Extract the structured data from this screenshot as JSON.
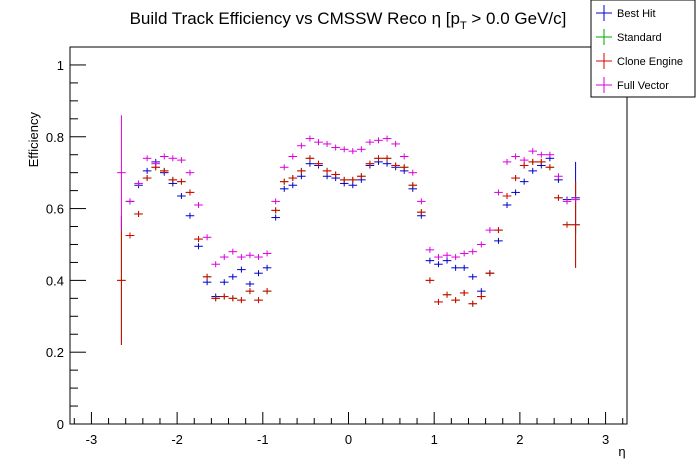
{
  "chart_data": {
    "type": "scatter",
    "title": "Build Track Efficiency vs CMSSW Reco η [p",
    "title_sub": "T",
    "title_suffix": " > 0.0 GeV/c]",
    "xlabel": "η",
    "ylabel": "Efficiency",
    "xlim": [
      -3.25,
      3.25
    ],
    "ylim": [
      0,
      1.05
    ],
    "x_ticks": [
      "-3",
      "-2",
      "-1",
      "0",
      "1",
      "2",
      "3"
    ],
    "y_ticks": [
      "0",
      "0.2",
      "0.4",
      "0.6",
      "0.8",
      "1"
    ],
    "grid": false,
    "legend_position": "top-right",
    "bin_half_width": 0.05,
    "x": [
      -2.65,
      -2.55,
      -2.45,
      -2.35,
      -2.25,
      -2.15,
      -2.05,
      -1.95,
      -1.85,
      -1.75,
      -1.65,
      -1.55,
      -1.45,
      -1.35,
      -1.25,
      -1.15,
      -1.05,
      -0.95,
      -0.85,
      -0.75,
      -0.65,
      -0.55,
      -0.45,
      -0.35,
      -0.25,
      -0.15,
      -0.05,
      0.05,
      0.15,
      0.25,
      0.35,
      0.45,
      0.55,
      0.65,
      0.75,
      0.85,
      0.95,
      1.05,
      1.15,
      1.25,
      1.35,
      1.45,
      1.55,
      1.65,
      1.75,
      1.85,
      1.95,
      2.05,
      2.15,
      2.25,
      2.35,
      2.45,
      2.55,
      2.65
    ],
    "series": [
      {
        "name": "Best Hit",
        "color": "#0000cc",
        "values": [
          null,
          0.62,
          0.665,
          0.705,
          0.73,
          0.7,
          0.67,
          0.635,
          0.58,
          0.495,
          0.395,
          0.355,
          0.395,
          0.41,
          0.43,
          0.39,
          0.42,
          0.435,
          0.575,
          0.655,
          0.665,
          0.69,
          0.725,
          0.72,
          0.69,
          0.685,
          0.67,
          0.665,
          0.68,
          0.72,
          0.73,
          0.725,
          0.715,
          0.705,
          0.655,
          0.58,
          0.455,
          0.445,
          0.455,
          0.435,
          0.435,
          0.41,
          0.37,
          0.42,
          0.51,
          0.61,
          0.645,
          0.675,
          0.705,
          0.72,
          0.74,
          0.68,
          0.625,
          0.63
        ],
        "error": [
          0,
          0,
          0,
          0,
          0,
          0,
          0,
          0,
          0,
          0,
          0,
          0,
          0,
          0,
          0,
          0,
          0,
          0,
          0,
          0,
          0,
          0,
          0,
          0,
          0,
          0,
          0,
          0,
          0,
          0,
          0,
          0,
          0,
          0,
          0,
          0,
          0,
          0,
          0,
          0,
          0,
          0,
          0,
          0,
          0,
          0,
          0,
          0,
          0,
          0,
          0,
          0,
          0,
          0.1
        ]
      },
      {
        "name": "Standard",
        "color": "#00aa00",
        "values": [
          0.4,
          0.525,
          0.585,
          0.685,
          0.715,
          0.705,
          0.68,
          0.675,
          0.645,
          0.515,
          0.41,
          0.35,
          0.355,
          0.35,
          0.345,
          0.37,
          0.345,
          0.37,
          0.595,
          0.675,
          0.685,
          0.705,
          0.74,
          0.725,
          0.705,
          0.695,
          0.68,
          0.68,
          0.69,
          0.725,
          0.74,
          0.74,
          0.72,
          0.715,
          0.665,
          0.59,
          0.4,
          0.34,
          0.36,
          0.345,
          0.365,
          0.335,
          0.355,
          0.42,
          0.54,
          0.635,
          0.685,
          0.72,
          0.73,
          0.73,
          0.715,
          0.63,
          0.555,
          0.555
        ],
        "error": [
          0.18,
          0,
          0,
          0,
          0,
          0,
          0,
          0,
          0,
          0,
          0,
          0,
          0,
          0,
          0,
          0,
          0,
          0,
          0,
          0,
          0,
          0,
          0,
          0,
          0,
          0,
          0,
          0,
          0,
          0,
          0,
          0,
          0,
          0,
          0,
          0,
          0,
          0,
          0,
          0,
          0,
          0,
          0,
          0,
          0,
          0,
          0,
          0,
          0,
          0,
          0,
          0,
          0,
          0.12
        ]
      },
      {
        "name": "Clone Engine",
        "color": "#dd0000",
        "values": [
          0.4,
          0.525,
          0.585,
          0.685,
          0.715,
          0.705,
          0.68,
          0.675,
          0.645,
          0.515,
          0.41,
          0.35,
          0.355,
          0.35,
          0.345,
          0.37,
          0.345,
          0.37,
          0.595,
          0.675,
          0.685,
          0.705,
          0.74,
          0.725,
          0.705,
          0.695,
          0.68,
          0.68,
          0.69,
          0.725,
          0.74,
          0.74,
          0.72,
          0.715,
          0.665,
          0.59,
          0.4,
          0.34,
          0.36,
          0.345,
          0.365,
          0.335,
          0.355,
          0.42,
          0.54,
          0.635,
          0.685,
          0.72,
          0.73,
          0.73,
          0.715,
          0.63,
          0.555,
          0.555
        ],
        "error": [
          0.18,
          0,
          0,
          0,
          0,
          0,
          0,
          0,
          0,
          0,
          0,
          0,
          0,
          0,
          0,
          0,
          0,
          0,
          0,
          0,
          0,
          0,
          0,
          0,
          0,
          0,
          0,
          0,
          0,
          0,
          0,
          0,
          0,
          0,
          0,
          0,
          0,
          0,
          0,
          0,
          0,
          0,
          0,
          0,
          0,
          0,
          0,
          0,
          0,
          0,
          0,
          0,
          0,
          0.12
        ]
      },
      {
        "name": "Full Vector",
        "color": "#dd00dd",
        "values": [
          0.7,
          0.62,
          0.67,
          0.74,
          0.725,
          0.745,
          0.74,
          0.735,
          0.7,
          0.61,
          0.52,
          0.445,
          0.465,
          0.48,
          0.465,
          0.47,
          0.465,
          0.475,
          0.62,
          0.715,
          0.745,
          0.775,
          0.795,
          0.785,
          0.78,
          0.77,
          0.765,
          0.76,
          0.765,
          0.785,
          0.79,
          0.795,
          0.78,
          0.745,
          0.7,
          0.62,
          0.485,
          0.465,
          0.47,
          0.465,
          0.475,
          0.48,
          0.5,
          0.54,
          0.645,
          0.73,
          0.745,
          0.735,
          0.76,
          0.75,
          0.75,
          0.69,
          0.62,
          0.625
        ],
        "error": [
          0.16,
          0,
          0,
          0,
          0,
          0,
          0,
          0,
          0,
          0,
          0,
          0,
          0,
          0,
          0,
          0,
          0,
          0,
          0,
          0,
          0,
          0,
          0,
          0,
          0,
          0,
          0,
          0,
          0,
          0,
          0,
          0,
          0,
          0,
          0,
          0,
          0,
          0,
          0,
          0,
          0,
          0,
          0,
          0,
          0,
          0,
          0,
          0,
          0,
          0,
          0,
          0,
          0,
          0
        ]
      }
    ]
  }
}
